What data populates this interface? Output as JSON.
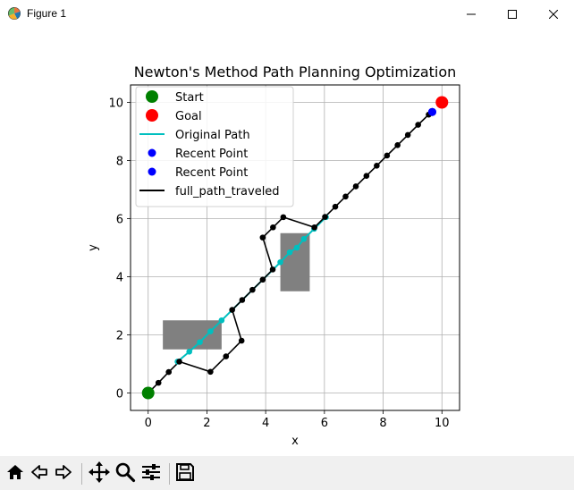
{
  "window": {
    "title": "Figure 1"
  },
  "toolbar": {
    "buttons": [
      "home-icon",
      "back-icon",
      "forward-icon",
      "pan-icon",
      "zoom-icon",
      "configure-subplots-icon",
      "save-icon"
    ]
  },
  "chart_data": {
    "type": "line",
    "title": "Newton's Method Path Planning Optimization",
    "xlabel": "x",
    "ylabel": "y",
    "xlim": [
      -0.6,
      10.6
    ],
    "ylim": [
      -0.6,
      10.6
    ],
    "xticks": [
      "0",
      "2",
      "4",
      "6",
      "8",
      "10"
    ],
    "yticks": [
      "0",
      "2",
      "4",
      "6",
      "8",
      "10"
    ],
    "grid": true,
    "legend_position": "upper left",
    "obstacles": [
      {
        "x": [
          0.5,
          2.5
        ],
        "y": [
          1.5,
          2.5
        ],
        "color": "#808080"
      },
      {
        "x": [
          4.5,
          5.5
        ],
        "y": [
          3.5,
          5.5
        ],
        "color": "#808080"
      }
    ],
    "series": [
      {
        "name": "Start",
        "kind": "marker",
        "color": "#008000",
        "points": [
          [
            0,
            0
          ]
        ]
      },
      {
        "name": "Goal",
        "kind": "marker",
        "color": "#ff0000",
        "points": [
          [
            10,
            10
          ]
        ]
      },
      {
        "name": "Original Path",
        "kind": "line",
        "color": "#00bfbf",
        "points": [
          [
            1.0,
            1.08
          ],
          [
            1.4,
            1.42
          ],
          [
            1.76,
            1.75
          ],
          [
            2.12,
            2.12
          ],
          [
            2.5,
            2.5
          ],
          [
            4.5,
            4.5
          ],
          [
            4.82,
            4.84
          ],
          [
            5.06,
            5.0
          ],
          [
            5.3,
            5.3
          ],
          [
            5.65,
            5.65
          ],
          [
            6.05,
            6.05
          ]
        ]
      },
      {
        "name": "Recent Point",
        "kind": "marker",
        "color": "#0000ff",
        "points": [
          [
            9.67,
            9.67
          ]
        ]
      },
      {
        "name": "Recent Point",
        "kind": "marker",
        "color": "#0000ff",
        "points": [
          [
            9.67,
            9.67
          ]
        ]
      },
      {
        "name": "full_path_traveled",
        "kind": "line",
        "color": "#000000",
        "points": [
          [
            0,
            0
          ],
          [
            0.35,
            0.35
          ],
          [
            0.7,
            0.72
          ],
          [
            1.06,
            1.08
          ],
          [
            2.12,
            0.73
          ],
          [
            2.65,
            1.26
          ],
          [
            3.18,
            1.8
          ],
          [
            2.86,
            2.86
          ],
          [
            3.2,
            3.2
          ],
          [
            3.55,
            3.55
          ],
          [
            3.9,
            3.9
          ],
          [
            4.24,
            4.25
          ],
          [
            3.9,
            5.35
          ],
          [
            4.25,
            5.7
          ],
          [
            4.6,
            6.05
          ],
          [
            5.66,
            5.7
          ],
          [
            6.02,
            6.06
          ],
          [
            6.37,
            6.41
          ],
          [
            6.72,
            6.76
          ],
          [
            7.07,
            7.11
          ],
          [
            7.43,
            7.47
          ],
          [
            7.78,
            7.82
          ],
          [
            8.13,
            8.17
          ],
          [
            8.49,
            8.53
          ],
          [
            8.84,
            8.88
          ],
          [
            9.19,
            9.23
          ],
          [
            9.55,
            9.58
          ],
          [
            9.67,
            9.67
          ]
        ]
      }
    ]
  }
}
